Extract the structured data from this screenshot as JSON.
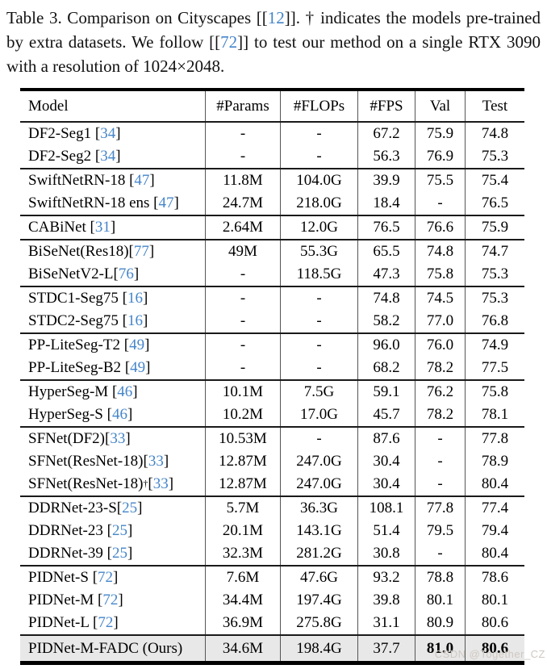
{
  "colors": {
    "cite_blue": "#4585c9",
    "highlight_row_bg": "#e8e8e8",
    "rule_black": "#000000",
    "column_divider_gray": "#555555",
    "watermark_gray": "#cfc8c2"
  },
  "caption": {
    "segments": [
      {
        "t": "Table 3. Comparison on Cityscapes ["
      },
      {
        "c": "12"
      },
      {
        "t": "]. † indicates the models pre-trained by extra datasets. We follow ["
      },
      {
        "c": "72"
      },
      {
        "t": "] to test our method on a single RTX 3090 with a resolution of 1024×2048."
      }
    ]
  },
  "table": {
    "columns": [
      "Model",
      "#Params",
      "#FLOPs",
      "#FPS",
      "Val",
      "Test"
    ],
    "groups": [
      {
        "rows": [
          {
            "model": [
              {
                "t": "DF2-Seg1 "
              },
              {
                "c": "34"
              }
            ],
            "params": "-",
            "flops": "-",
            "fps": "67.2",
            "val": "75.9",
            "test": "74.8"
          },
          {
            "model": [
              {
                "t": "DF2-Seg2 "
              },
              {
                "c": "34"
              }
            ],
            "params": "-",
            "flops": "-",
            "fps": "56.3",
            "val": "76.9",
            "test": "75.3"
          }
        ]
      },
      {
        "rows": [
          {
            "model": [
              {
                "t": "SwiftNetRN-18 "
              },
              {
                "c": "47"
              }
            ],
            "params": "11.8M",
            "flops": "104.0G",
            "fps": "39.9",
            "val": "75.5",
            "test": "75.4"
          },
          {
            "model": [
              {
                "t": "SwiftNetRN-18 ens "
              },
              {
                "c": "47"
              }
            ],
            "params": "24.7M",
            "flops": "218.0G",
            "fps": "18.4",
            "val": "-",
            "test": "76.5"
          }
        ]
      },
      {
        "rows": [
          {
            "model": [
              {
                "t": "CABiNet "
              },
              {
                "c": "31"
              }
            ],
            "params": "2.64M",
            "flops": "12.0G",
            "fps": "76.5",
            "val": "76.6",
            "test": "75.9"
          }
        ]
      },
      {
        "rows": [
          {
            "model": [
              {
                "t": "BiSeNet(Res18)"
              },
              {
                "c": "77"
              }
            ],
            "params": "49M",
            "flops": "55.3G",
            "fps": "65.5",
            "val": "74.8",
            "test": "74.7"
          },
          {
            "model": [
              {
                "t": "BiSeNetV2-L"
              },
              {
                "c": "76"
              }
            ],
            "params": "-",
            "flops": "118.5G",
            "fps": "47.3",
            "val": "75.8",
            "test": "75.3"
          }
        ]
      },
      {
        "rows": [
          {
            "model": [
              {
                "t": "STDC1-Seg75 "
              },
              {
                "c": "16"
              }
            ],
            "params": "-",
            "flops": "-",
            "fps": "74.8",
            "val": "74.5",
            "test": "75.3"
          },
          {
            "model": [
              {
                "t": "STDC2-Seg75 "
              },
              {
                "c": "16"
              }
            ],
            "params": "-",
            "flops": "-",
            "fps": "58.2",
            "val": "77.0",
            "test": "76.8"
          }
        ]
      },
      {
        "rows": [
          {
            "model": [
              {
                "t": "PP-LiteSeg-T2 "
              },
              {
                "c": "49"
              }
            ],
            "params": "-",
            "flops": "-",
            "fps": "96.0",
            "val": "76.0",
            "test": "74.9"
          },
          {
            "model": [
              {
                "t": "PP-LiteSeg-B2 "
              },
              {
                "c": "49"
              }
            ],
            "params": "-",
            "flops": "-",
            "fps": "68.2",
            "val": "78.2",
            "test": "77.5"
          }
        ]
      },
      {
        "rows": [
          {
            "model": [
              {
                "t": "HyperSeg-M "
              },
              {
                "c": "46"
              }
            ],
            "params": "10.1M",
            "flops": "7.5G",
            "fps": "59.1",
            "val": "76.2",
            "test": "75.8"
          },
          {
            "model": [
              {
                "t": "HyperSeg-S "
              },
              {
                "c": "46"
              }
            ],
            "params": "10.2M",
            "flops": "17.0G",
            "fps": "45.7",
            "val": "78.2",
            "test": "78.1"
          }
        ]
      },
      {
        "rows": [
          {
            "model": [
              {
                "t": "SFNet(DF2)"
              },
              {
                "c": "33"
              }
            ],
            "params": "10.53M",
            "flops": "-",
            "fps": "87.6",
            "val": "-",
            "test": "77.8"
          },
          {
            "model": [
              {
                "t": "SFNet(ResNet-18)"
              },
              {
                "c": "33"
              }
            ],
            "params": "12.87M",
            "flops": "247.0G",
            "fps": "30.4",
            "val": "-",
            "test": "78.9"
          },
          {
            "model": [
              {
                "t": "SFNet(ResNet-18)"
              },
              {
                "sup": "†"
              },
              {
                "c": "33"
              }
            ],
            "params": "12.87M",
            "flops": "247.0G",
            "fps": "30.4",
            "val": "-",
            "test": "80.4"
          }
        ]
      },
      {
        "rows": [
          {
            "model": [
              {
                "t": "DDRNet-23-S"
              },
              {
                "c": "25"
              }
            ],
            "params": "5.7M",
            "flops": "36.3G",
            "fps": "108.1",
            "val": "77.8",
            "test": "77.4"
          },
          {
            "model": [
              {
                "t": "DDRNet-23 "
              },
              {
                "c": "25"
              }
            ],
            "params": "20.1M",
            "flops": "143.1G",
            "fps": "51.4",
            "val": "79.5",
            "test": "79.4"
          },
          {
            "model": [
              {
                "t": "DDRNet-39 "
              },
              {
                "c": "25"
              }
            ],
            "params": "32.3M",
            "flops": "281.2G",
            "fps": "30.8",
            "val": "-",
            "test": "80.4"
          }
        ]
      },
      {
        "rows": [
          {
            "model": [
              {
                "t": "PIDNet-S "
              },
              {
                "c": "72"
              }
            ],
            "params": "7.6M",
            "flops": "47.6G",
            "fps": "93.2",
            "val": "78.8",
            "test": "78.6"
          },
          {
            "model": [
              {
                "t": "PIDNet-M "
              },
              {
                "c": "72"
              }
            ],
            "params": "34.4M",
            "flops": "197.4G",
            "fps": "39.8",
            "val": "80.1",
            "test": "80.1"
          },
          {
            "model": [
              {
                "t": "PIDNet-L "
              },
              {
                "c": "72"
              }
            ],
            "params": "36.9M",
            "flops": "275.8G",
            "fps": "31.1",
            "val": "80.9",
            "test": "80.6"
          }
        ]
      },
      {
        "highlight": true,
        "rows": [
          {
            "model": [
              {
                "t": "PIDNet-M-FADC (Ours)"
              }
            ],
            "params": "34.6M",
            "flops": "198.4G",
            "fps": "37.7",
            "val": "81.0",
            "test": "80.6",
            "bold": [
              "val",
              "test"
            ]
          }
        ]
      }
    ]
  },
  "watermark": "CSDN @Together_CZ"
}
